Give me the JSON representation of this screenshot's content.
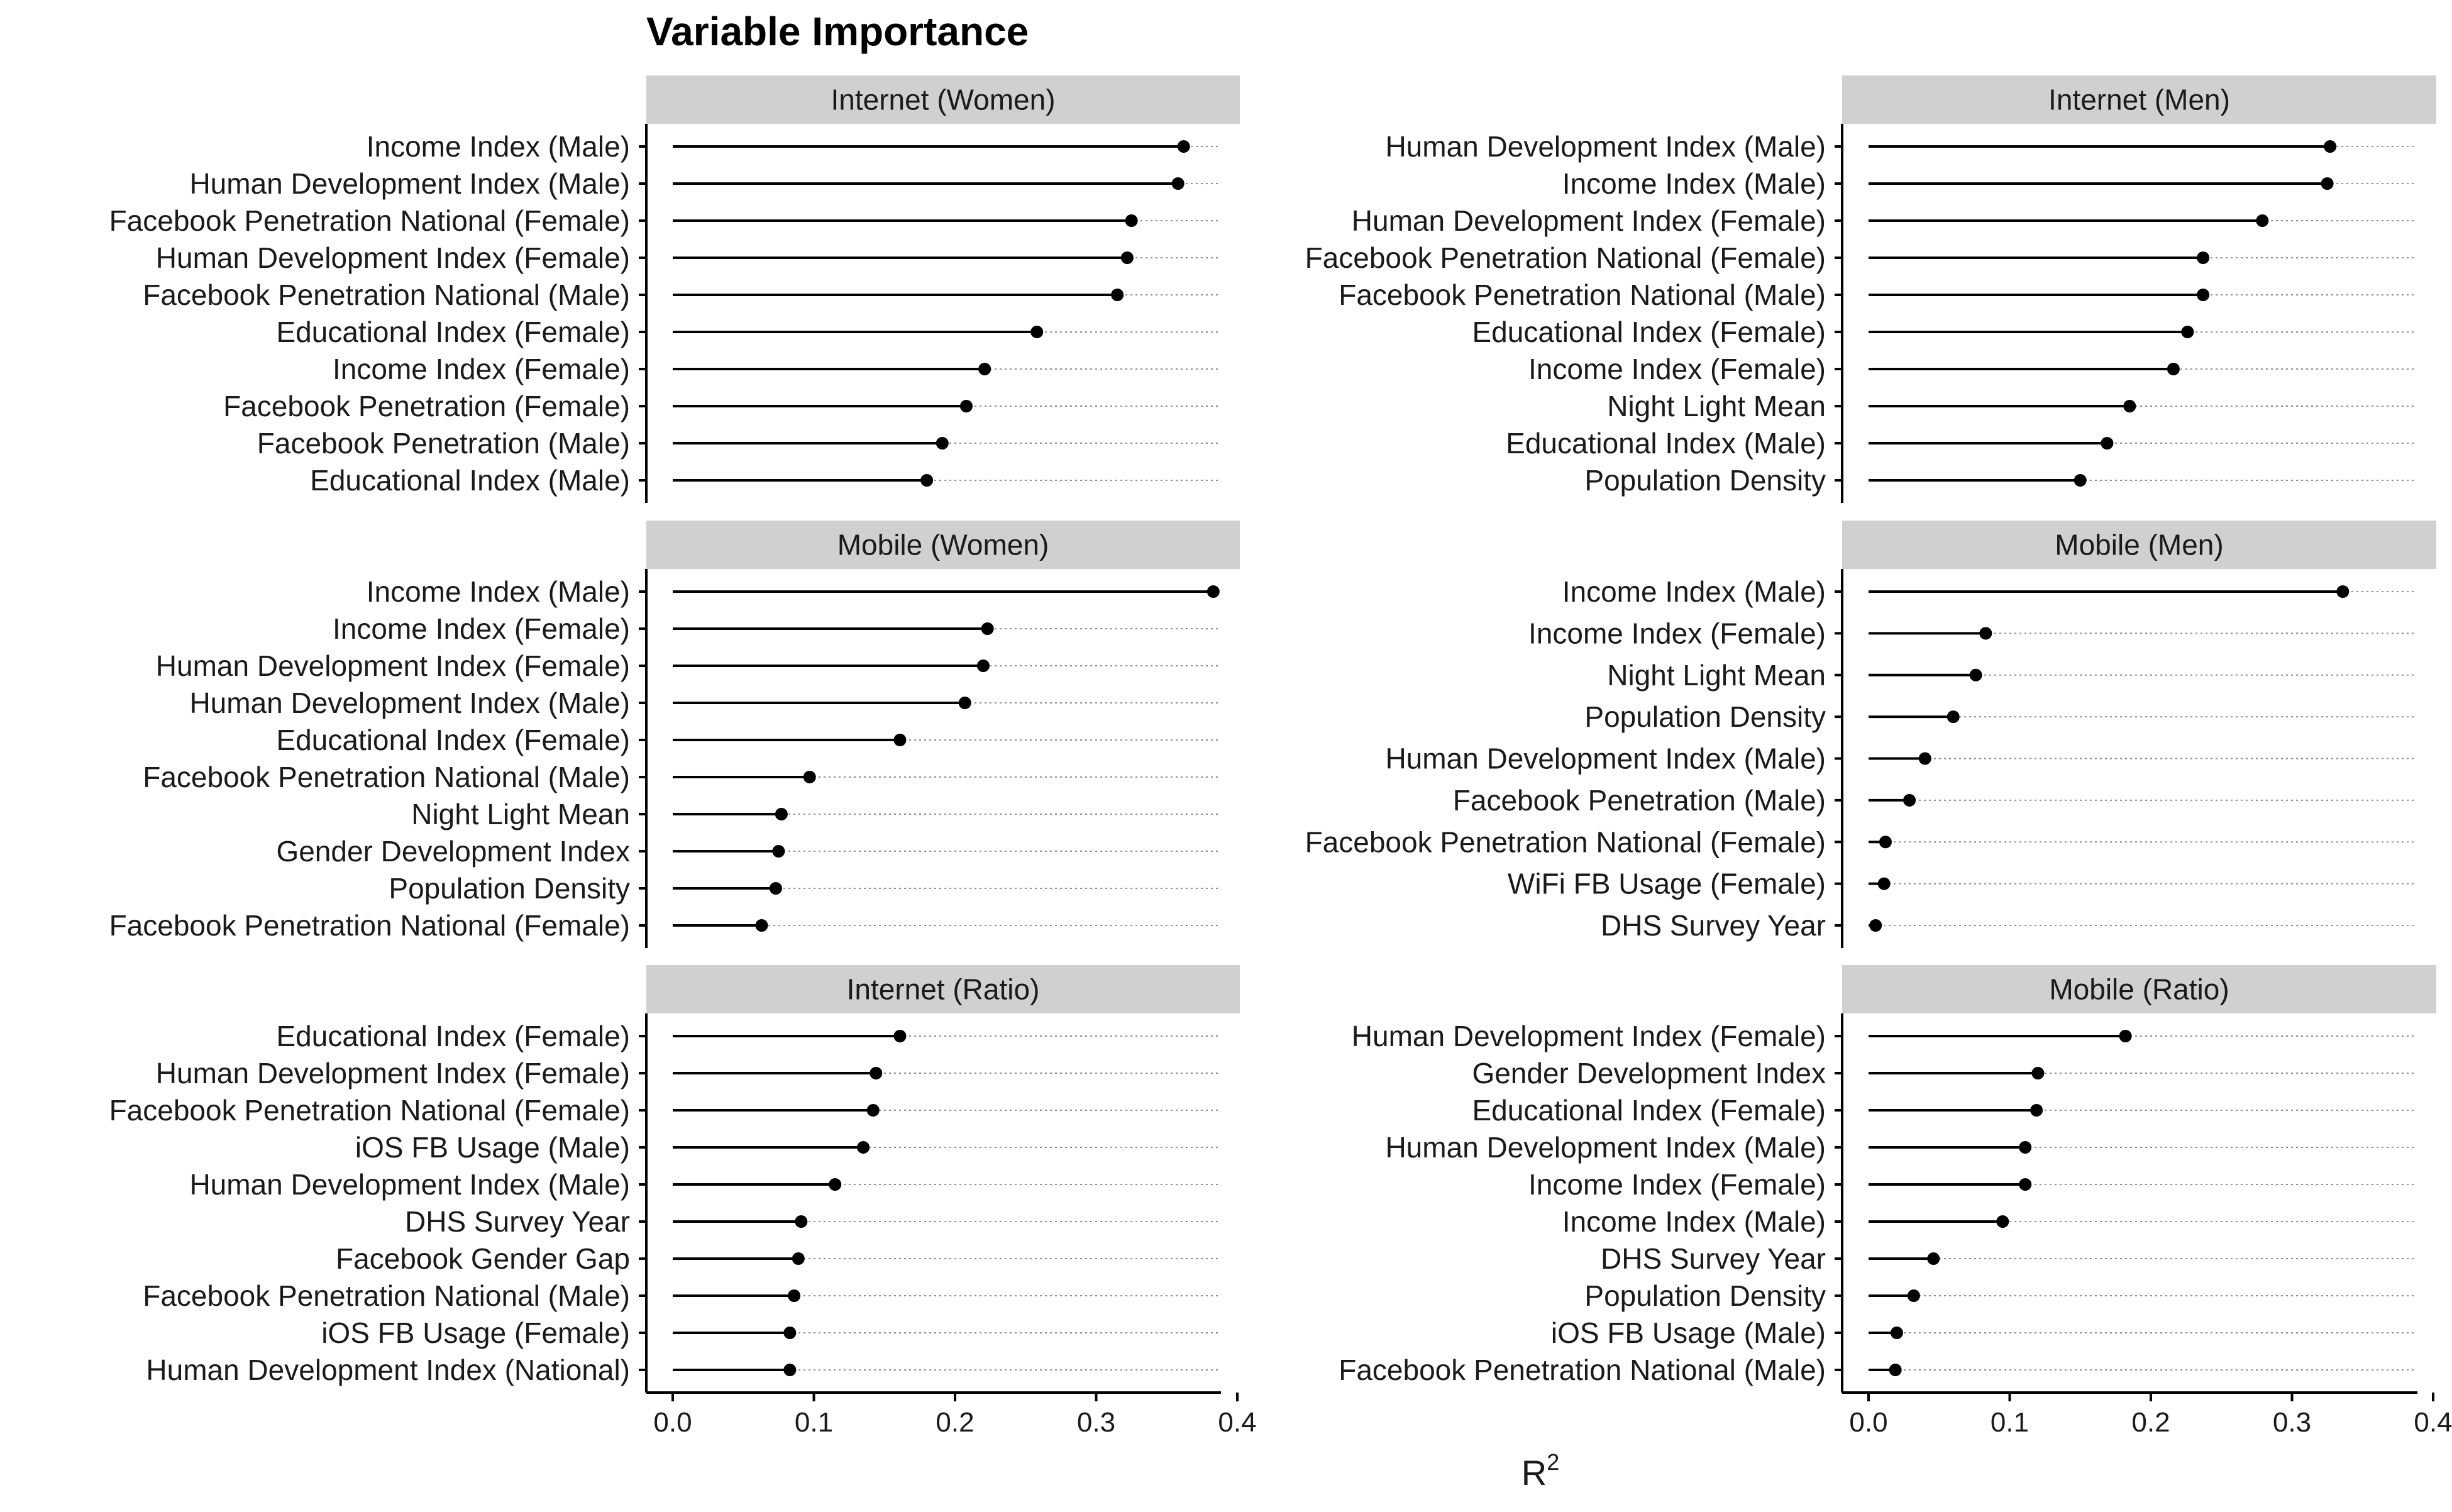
{
  "chart_data": {
    "type": "lollipop",
    "title": "Variable Importance",
    "xlabel": "R",
    "xlabel_superscript": "2",
    "xlim": [
      0,
      0.4
    ],
    "xticks": [
      0.0,
      0.1,
      0.2,
      0.3,
      0.4
    ],
    "xtick_labels": [
      "0.0",
      "0.1",
      "0.2",
      "0.3",
      "0.4"
    ],
    "grid": "dotted horizontal guides",
    "panels": [
      {
        "title": "Internet (Women)",
        "labels": [
          "Income Index (Male)",
          "Human Development Index (Male)",
          "Facebook Penetration National (Female)",
          "Human Development Index (Female)",
          "Facebook Penetration National (Male)",
          "Educational Index (Female)",
          "Income Index (Female)",
          "Facebook Penetration (Female)",
          "Facebook Penetration (Male)",
          "Educational Index (Male)"
        ],
        "values": [
          0.362,
          0.358,
          0.325,
          0.322,
          0.315,
          0.258,
          0.221,
          0.208,
          0.191,
          0.18
        ]
      },
      {
        "title": "Internet (Men)",
        "labels": [
          "Human Development Index (Male)",
          "Income Index (Male)",
          "Human Development Index (Female)",
          "Facebook Penetration National (Female)",
          "Facebook Penetration National (Male)",
          "Educational Index (Female)",
          "Income Index (Female)",
          "Night Light Mean",
          "Educational Index (Male)",
          "Population Density"
        ],
        "values": [
          0.327,
          0.325,
          0.279,
          0.237,
          0.237,
          0.226,
          0.216,
          0.185,
          0.169,
          0.15
        ]
      },
      {
        "title": "Mobile (Women)",
        "labels": [
          "Income Index (Male)",
          "Income Index (Female)",
          "Human Development Index (Female)",
          "Human Development Index (Male)",
          "Educational Index (Female)",
          "Facebook Penetration National (Male)",
          "Night Light Mean",
          "Gender Development Index",
          "Population Density",
          "Facebook Penetration National (Female)"
        ],
        "values": [
          0.383,
          0.223,
          0.22,
          0.207,
          0.161,
          0.097,
          0.077,
          0.075,
          0.073,
          0.063
        ]
      },
      {
        "title": "Mobile (Men)",
        "labels": [
          "Income Index (Male)",
          "Income Index (Female)",
          "Night Light Mean",
          "Population Density",
          "Human Development Index (Male)",
          "Facebook Penetration (Male)",
          "Facebook Penetration National (Female)",
          "WiFi FB Usage (Female)",
          "DHS Survey Year"
        ],
        "values": [
          0.336,
          0.083,
          0.076,
          0.06,
          0.04,
          0.029,
          0.012,
          0.011,
          0.005
        ]
      },
      {
        "title": "Internet (Ratio)",
        "labels": [
          "Educational Index (Female)",
          "Human Development Index (Female)",
          "Facebook Penetration National (Female)",
          "iOS FB Usage (Male)",
          "Human Development Index (Male)",
          "DHS Survey Year",
          "Facebook Gender Gap",
          "Facebook Penetration National (Male)",
          "iOS FB Usage (Female)",
          "Human Development Index (National)"
        ],
        "values": [
          0.161,
          0.144,
          0.142,
          0.135,
          0.115,
          0.091,
          0.089,
          0.086,
          0.083,
          0.083
        ]
      },
      {
        "title": "Mobile (Ratio)",
        "labels": [
          "Human Development Index (Female)",
          "Gender Development Index",
          "Educational Index (Female)",
          "Human Development Index (Male)",
          "Income Index (Female)",
          "Income Index (Male)",
          "DHS Survey Year",
          "Population Density",
          "iOS FB Usage (Male)",
          "Facebook Penetration National (Male)"
        ],
        "values": [
          0.182,
          0.12,
          0.119,
          0.111,
          0.111,
          0.095,
          0.046,
          0.032,
          0.02,
          0.019
        ]
      }
    ]
  }
}
